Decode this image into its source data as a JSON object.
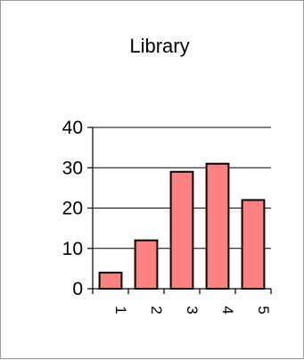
{
  "chart_data": {
    "type": "bar",
    "title": "Library",
    "categories": [
      "1",
      "2",
      "3",
      "4",
      "5"
    ],
    "values": [
      4,
      12,
      29,
      31,
      22
    ],
    "xlabel": "",
    "ylabel": "",
    "ylim": [
      0,
      40
    ],
    "yticks": [
      0,
      10,
      20,
      30,
      40
    ],
    "grid": true,
    "legend": "none",
    "colors": {
      "bar_fill": "#ff8080",
      "bar_stroke": "#000000",
      "grid": "#000000",
      "background": "#ffffff"
    }
  }
}
